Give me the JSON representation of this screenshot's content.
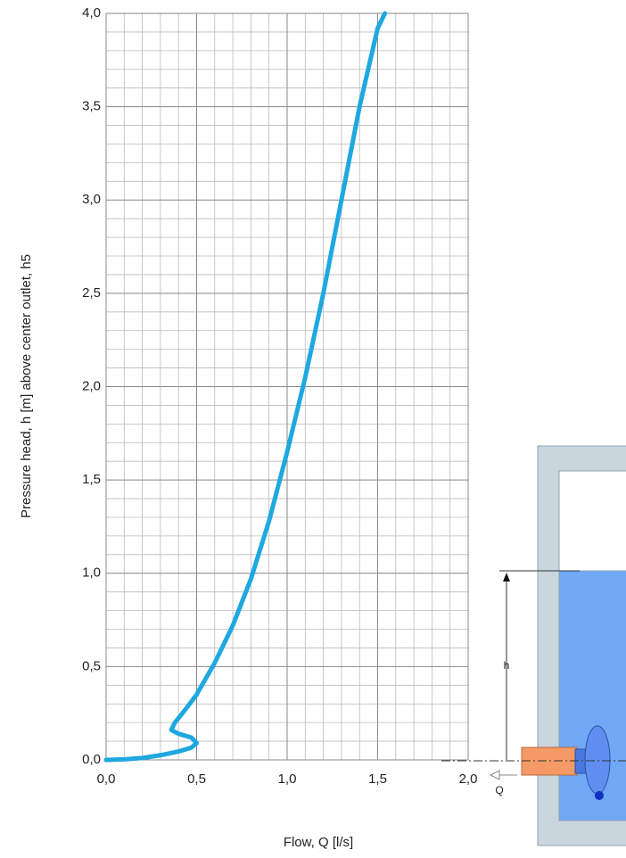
{
  "chart_data": {
    "type": "line",
    "xlabel": "Flow, Q [l/s]",
    "ylabel": "Pressure head, h [m] above center outlet, h5",
    "x": [
      0,
      0.1,
      0.2,
      0.3,
      0.4,
      0.47,
      0.5,
      0.47,
      0.4,
      0.36,
      0.38,
      0.43,
      0.5,
      0.6,
      0.7,
      0.8,
      0.9,
      1.0,
      1.1,
      1.2,
      1.3,
      1.4,
      1.5,
      1.54
    ],
    "series": [
      {
        "color": "#1ea8e0",
        "values": [
          0,
          0.003,
          0.01,
          0.025,
          0.045,
          0.065,
          0.09,
          0.12,
          0.14,
          0.16,
          0.2,
          0.26,
          0.35,
          0.52,
          0.72,
          0.97,
          1.28,
          1.65,
          2.05,
          2.5,
          3.0,
          3.5,
          3.92,
          4.0
        ]
      }
    ],
    "xlim": [
      0,
      2
    ],
    "ylim": [
      0,
      4
    ],
    "xticks": [
      {
        "value": 0,
        "label": "0,0"
      },
      {
        "value": 0.5,
        "label": "0,5"
      },
      {
        "value": 1,
        "label": "1,0"
      },
      {
        "value": 1.5,
        "label": "1,5"
      },
      {
        "value": 2,
        "label": "2,0"
      }
    ],
    "yticks": [
      {
        "value": 0,
        "label": "0,0"
      },
      {
        "value": 0.5,
        "label": "0,5"
      },
      {
        "value": 1,
        "label": "1,0"
      },
      {
        "value": 1.5,
        "label": "1,5"
      },
      {
        "value": 2,
        "label": "2,0"
      },
      {
        "value": 2.5,
        "label": "2,5"
      },
      {
        "value": 3,
        "label": "3,0"
      },
      {
        "value": 3.5,
        "label": "3,5"
      },
      {
        "value": 4,
        "label": "4,0"
      }
    ],
    "grid": true,
    "minor_grid_divisions": 5,
    "annotations": [
      "h",
      "Q"
    ]
  }
}
